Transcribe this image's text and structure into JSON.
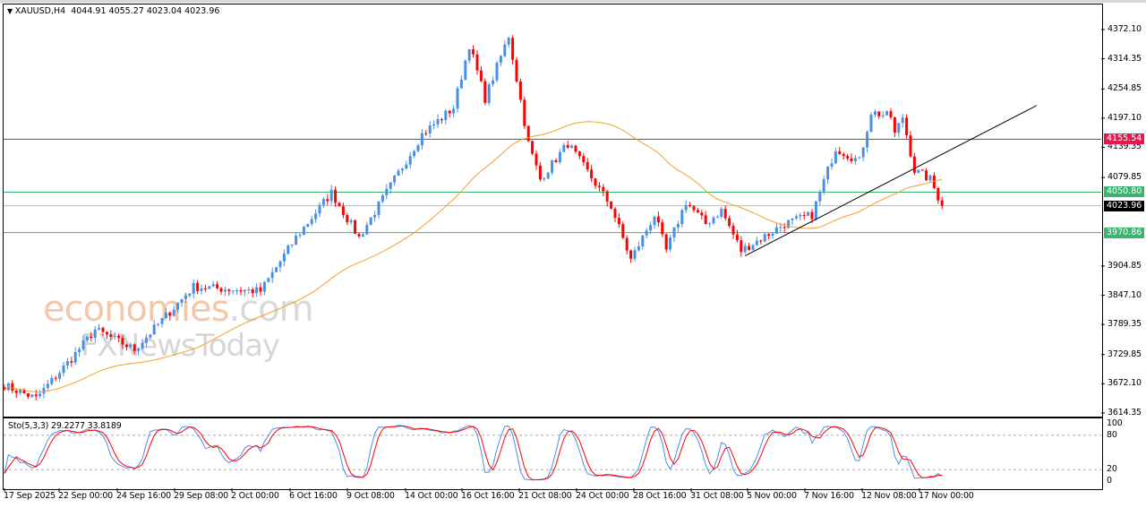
{
  "header": {
    "symbol": "XAUUSD,H4",
    "ohlc": "4044.91 4055.27 4023.04 4023.96"
  },
  "watermark": {
    "brand_a": "econo",
    "brand_b": "mies",
    "brand_c": ".com",
    "brand2": "FXNewsToday"
  },
  "indicator": {
    "label": "Sto(5,3,3) 29.2277 33.8189",
    "levels": [
      "100",
      "80",
      "20",
      "0"
    ]
  },
  "colors": {
    "bull": "#4a90e2",
    "bear": "#ff0000",
    "ma": "#f5a02a",
    "resistance": "#e4184a",
    "support": "#3cb371",
    "current": "#000000"
  },
  "chart_data": {
    "type": "candlestick",
    "symbol": "XAUUSD",
    "timeframe": "H4",
    "ylim": [
      3600,
      4400
    ],
    "y_ticks": [
      "4372.10",
      "4314.35",
      "4254.85",
      "4197.10",
      "4139.35",
      "4079.85",
      "3904.85",
      "3847.10",
      "3789.35",
      "3729.85",
      "3672.10",
      "3614.35"
    ],
    "x_ticks": [
      "17 Sep 2025",
      "22 Sep 00:00",
      "24 Sep 16:00",
      "29 Sep 08:00",
      "2 Oct 00:00",
      "6 Oct 16:00",
      "9 Oct 08:00",
      "14 Oct 00:00",
      "16 Oct 16:00",
      "21 Oct 08:00",
      "24 Oct 00:00",
      "28 Oct 16:00",
      "31 Oct 08:00",
      "5 Nov 00:00",
      "7 Nov 16:00",
      "12 Nov 08:00",
      "17 Nov 00:00"
    ],
    "candle_count": 239,
    "close_keypoints": [
      [
        0,
        3669
      ],
      [
        8,
        3643
      ],
      [
        17,
        3722
      ],
      [
        23,
        3779
      ],
      [
        33,
        3740
      ],
      [
        48,
        3864
      ],
      [
        65,
        3855
      ],
      [
        74,
        3961
      ],
      [
        83,
        4050
      ],
      [
        90,
        3961
      ],
      [
        99,
        4076
      ],
      [
        106,
        4165
      ],
      [
        114,
        4218
      ],
      [
        118,
        4342
      ],
      [
        122,
        4236
      ],
      [
        128,
        4360
      ],
      [
        133,
        4147
      ],
      [
        136,
        4076
      ],
      [
        143,
        4147
      ],
      [
        154,
        4023
      ],
      [
        159,
        3917
      ],
      [
        165,
        4006
      ],
      [
        168,
        3935
      ],
      [
        173,
        4032
      ],
      [
        178,
        3988
      ],
      [
        182,
        4015
      ],
      [
        187,
        3935
      ],
      [
        198,
        3988
      ],
      [
        205,
        4006
      ],
      [
        211,
        4138
      ],
      [
        217,
        4112
      ],
      [
        220,
        4209
      ],
      [
        225,
        4200
      ],
      [
        226,
        4165
      ],
      [
        228,
        4200
      ],
      [
        231,
        4094
      ],
      [
        235,
        4076
      ],
      [
        238,
        4024
      ]
    ],
    "moving_average_period": 50,
    "trendline": [
      [
        188,
        3925
      ],
      [
        262,
        4222
      ]
    ],
    "levels": [
      {
        "price": 4155.54,
        "label": "4155.54",
        "kind": "resistance"
      },
      {
        "price": 4050.8,
        "label": "4050.80",
        "kind": "support"
      },
      {
        "price": 4023.96,
        "label": "4023.96",
        "kind": "current"
      },
      {
        "price": 3970.86,
        "label": "3970.86",
        "kind": "support"
      }
    ]
  }
}
